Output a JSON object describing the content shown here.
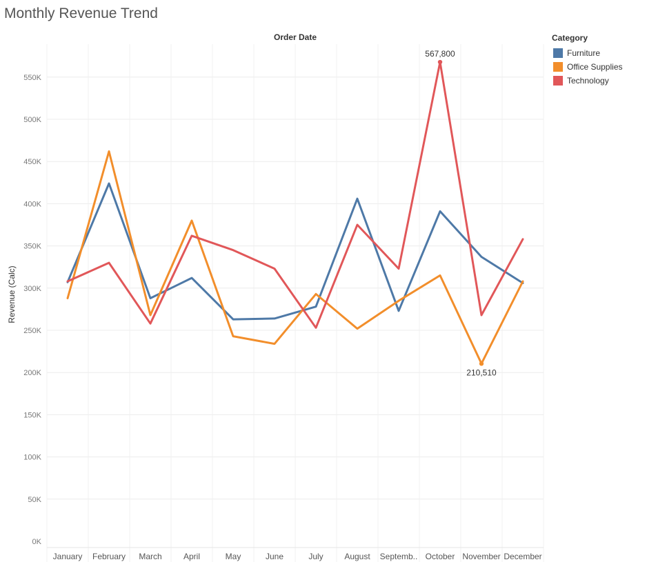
{
  "chart_data": {
    "type": "line",
    "title": "Monthly Revenue Trend",
    "xlabel": "Order Date",
    "ylabel": "Revenue (Calc)",
    "categories": [
      "January",
      "February",
      "March",
      "April",
      "May",
      "June",
      "July",
      "August",
      "Septemb..",
      "October",
      "November",
      "December"
    ],
    "ylim": [
      0,
      590000
    ],
    "yticks": [
      0,
      50000,
      100000,
      150000,
      200000,
      250000,
      300000,
      350000,
      400000,
      450000,
      500000,
      550000
    ],
    "ytick_labels": [
      "0K",
      "50K",
      "100K",
      "150K",
      "200K",
      "250K",
      "300K",
      "350K",
      "400K",
      "450K",
      "500K",
      "550K"
    ],
    "grid": true,
    "legend": {
      "title": "Category",
      "position": "top-right"
    },
    "series": [
      {
        "name": "Furniture",
        "color": "#4e79a7",
        "values": [
          307000,
          424000,
          288000,
          312000,
          263000,
          264000,
          278000,
          406000,
          273000,
          391000,
          337000,
          306000
        ]
      },
      {
        "name": "Office Supplies",
        "color": "#f28e2b",
        "values": [
          288000,
          462000,
          268000,
          380000,
          243000,
          234000,
          293000,
          252000,
          285000,
          315000,
          210510,
          308000
        ]
      },
      {
        "name": "Technology",
        "color": "#e15759",
        "values": [
          308000,
          330000,
          258000,
          362000,
          345000,
          323000,
          253000,
          375000,
          323000,
          567800,
          268000,
          358000
        ]
      }
    ],
    "annotations": [
      {
        "series": "Technology",
        "index": 9,
        "label": "567,800",
        "placement": "above"
      },
      {
        "series": "Office Supplies",
        "index": 10,
        "label": "210,510",
        "placement": "below"
      }
    ]
  }
}
